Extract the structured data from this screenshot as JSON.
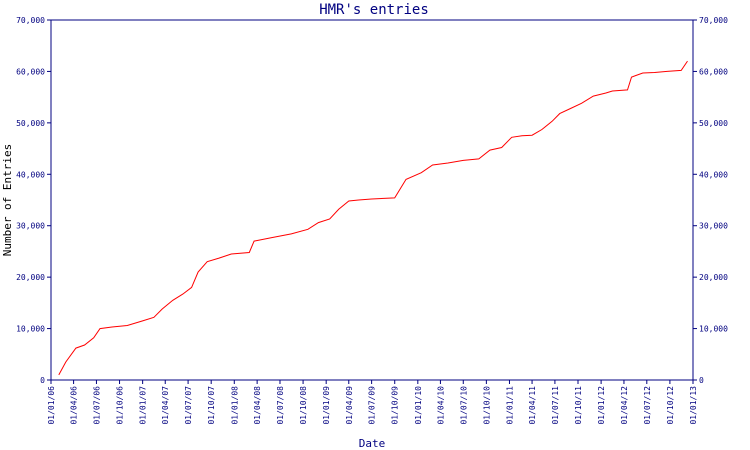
{
  "chart_data": {
    "type": "line",
    "title": "HMR's entries",
    "xlabel": "Date",
    "ylabel": "Number of Entries",
    "ylim": [
      0,
      70000
    ],
    "y_ticks": [
      0,
      10000,
      20000,
      30000,
      40000,
      50000,
      60000,
      70000
    ],
    "y_tick_labels": [
      "0",
      "10,000",
      "20,000",
      "30,000",
      "40,000",
      "50,000",
      "60,000",
      "70,000"
    ],
    "x_ticks": [
      "2006-01-01",
      "2006-04-01",
      "2006-07-01",
      "2006-10-01",
      "2007-01-01",
      "2007-04-01",
      "2007-07-01",
      "2007-10-01",
      "2008-01-01",
      "2008-04-01",
      "2008-07-01",
      "2008-10-01",
      "2009-01-01",
      "2009-04-01",
      "2009-07-01",
      "2009-10-01",
      "2010-01-01",
      "2010-04-01",
      "2010-07-01",
      "2010-10-01",
      "2011-01-01",
      "2011-04-01",
      "2011-07-01",
      "2011-10-01",
      "2012-01-01",
      "2012-04-01",
      "2012-07-01",
      "2012-10-01",
      "2013-01-01"
    ],
    "x_tick_labels": [
      "01/01/06",
      "01/04/06",
      "01/07/06",
      "01/10/06",
      "01/01/07",
      "01/04/07",
      "01/07/07",
      "01/10/07",
      "01/01/08",
      "01/04/08",
      "01/07/08",
      "01/10/08",
      "01/01/09",
      "01/04/09",
      "01/07/09",
      "01/10/09",
      "01/01/10",
      "01/04/10",
      "01/07/10",
      "01/10/10",
      "01/01/11",
      "01/04/11",
      "01/07/11",
      "01/10/11",
      "01/01/12",
      "01/04/12",
      "01/07/12",
      "01/10/12",
      "01/01/13"
    ],
    "grid": false,
    "series": [
      {
        "color": "#ff0000",
        "points": [
          [
            "2006-02-01",
            1000
          ],
          [
            "2006-03-01",
            3500
          ],
          [
            "2006-04-10",
            6200
          ],
          [
            "2006-05-15",
            6800
          ],
          [
            "2006-06-20",
            8200
          ],
          [
            "2006-07-15",
            10000
          ],
          [
            "2006-09-01",
            10300
          ],
          [
            "2006-11-01",
            10600
          ],
          [
            "2007-01-01",
            11500
          ],
          [
            "2007-02-15",
            12200
          ],
          [
            "2007-03-20",
            13800
          ],
          [
            "2007-05-01",
            15500
          ],
          [
            "2007-06-10",
            16700
          ],
          [
            "2007-07-15",
            18000
          ],
          [
            "2007-08-10",
            21000
          ],
          [
            "2007-09-15",
            23000
          ],
          [
            "2007-11-01",
            23700
          ],
          [
            "2007-12-20",
            24500
          ],
          [
            "2008-03-01",
            24800
          ],
          [
            "2008-03-20",
            27000
          ],
          [
            "2008-06-01",
            27700
          ],
          [
            "2008-08-15",
            28400
          ],
          [
            "2008-10-20",
            29300
          ],
          [
            "2008-12-01",
            30600
          ],
          [
            "2009-01-15",
            31300
          ],
          [
            "2009-02-20",
            33200
          ],
          [
            "2009-04-01",
            34800
          ],
          [
            "2009-05-10",
            35000
          ],
          [
            "2009-07-01",
            35200
          ],
          [
            "2009-10-01",
            35400
          ],
          [
            "2009-11-15",
            39000
          ],
          [
            "2010-01-15",
            40300
          ],
          [
            "2010-03-01",
            41800
          ],
          [
            "2010-05-01",
            42200
          ],
          [
            "2010-07-01",
            42700
          ],
          [
            "2010-09-01",
            43000
          ],
          [
            "2010-10-15",
            44700
          ],
          [
            "2010-12-01",
            45200
          ],
          [
            "2011-01-10",
            47200
          ],
          [
            "2011-02-20",
            47500
          ],
          [
            "2011-04-01",
            47600
          ],
          [
            "2011-05-10",
            48700
          ],
          [
            "2011-06-20",
            50300
          ],
          [
            "2011-07-20",
            51800
          ],
          [
            "2011-09-01",
            52800
          ],
          [
            "2011-10-15",
            53800
          ],
          [
            "2011-12-01",
            55200
          ],
          [
            "2012-01-20",
            55800
          ],
          [
            "2012-02-15",
            56200
          ],
          [
            "2012-04-15",
            56400
          ],
          [
            "2012-05-01",
            58900
          ],
          [
            "2012-06-15",
            59700
          ],
          [
            "2012-08-01",
            59800
          ],
          [
            "2012-09-20",
            60000
          ],
          [
            "2012-11-15",
            60200
          ],
          [
            "2012-12-10",
            62000
          ]
        ]
      }
    ]
  }
}
